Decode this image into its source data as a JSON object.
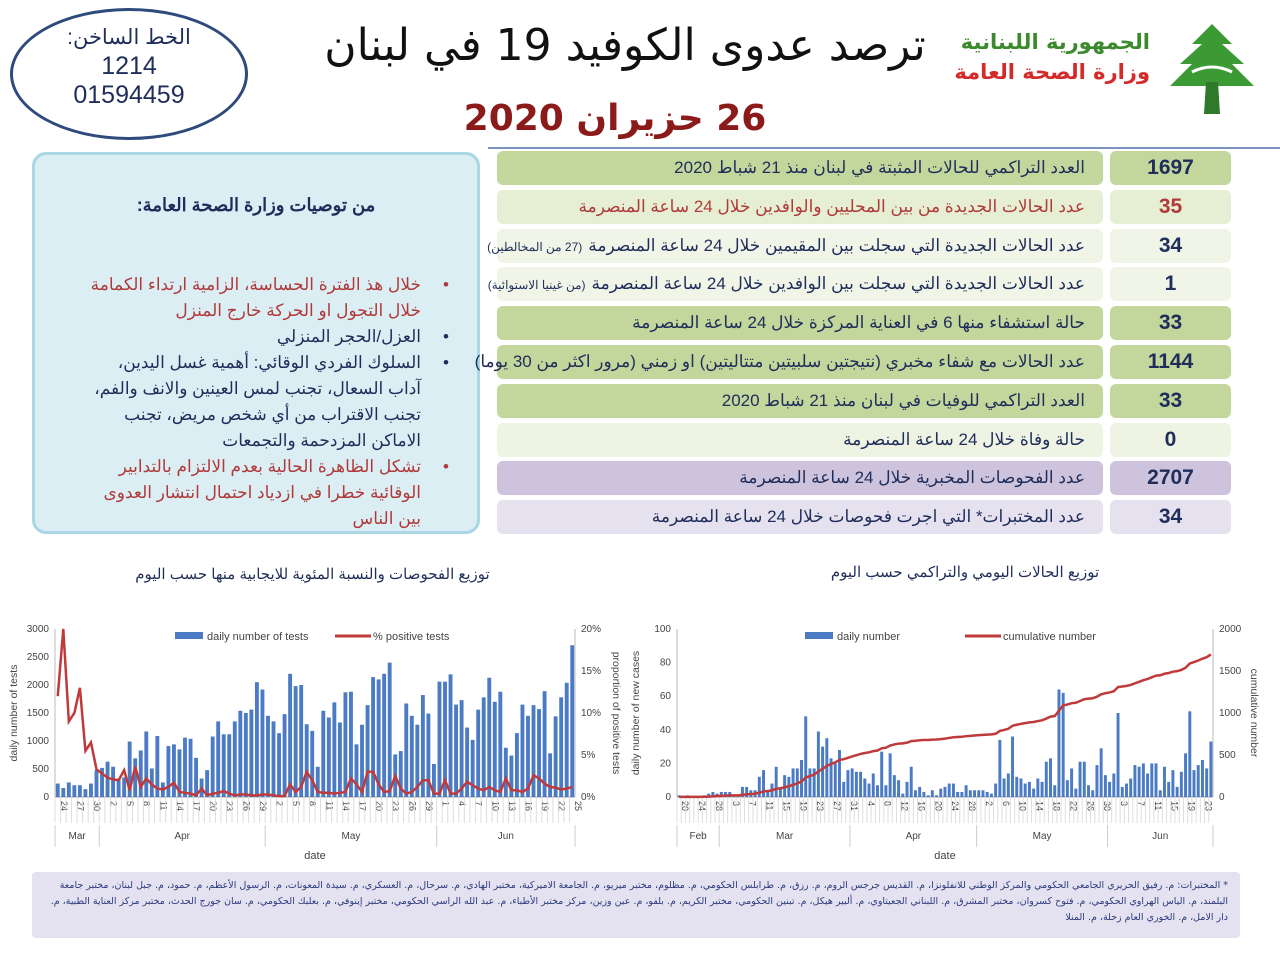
{
  "header": {
    "hotline_label": "الخط الساخن:",
    "hotline_1": "1214",
    "hotline_2": "01594459",
    "title": "ترصد عدوى الكوفيد 19 في لبنان",
    "date": "26 حزيران 2020",
    "ministry_line1": "الجمهورية اللبنانية",
    "ministry_line2": "وزارة الصحة العامة",
    "logo": "cedar-tree-logo"
  },
  "recommendations": {
    "title": "من توصيات وزارة الصحة العامة:",
    "items": [
      {
        "text": "خلال هذ الفترة الحساسة، الزامية ارتداء الكمامة خلال التجول او الحركة خارج المنزل",
        "color": "red"
      },
      {
        "text": "العزل/الحجر المنزلي",
        "color": "blue"
      },
      {
        "text": "السلوك الفردي الوقائي: أهمية غسل اليدين، آداب السعال، تجنب لمس العينين والانف والفم، تجنب الاقتراب من أي شخص مريض، تجنب الاماكن المزدحمة والتجمعات",
        "color": "blue"
      },
      {
        "text": "تشكل الظاهرة الحالية بعدم الالتزام بالتدابير الوقائية خطرا في ازدياد احتمال انتشار العدوى بين الناس",
        "color": "red"
      }
    ]
  },
  "stats": [
    {
      "label": "العدد التراكمي للحالات المثبتة في لبنان منذ 21 شباط 2020",
      "note": "",
      "value": "1697",
      "bg": "#c3d69b",
      "vbg": "#c3d69b",
      "color": "#1f2d5a"
    },
    {
      "label": "عدد الحالات الجديدة من بين المحليين والوافدين خلال 24 ساعة المنصرمة",
      "note": "",
      "value": "35",
      "bg": "#e6efd3",
      "vbg": "#e6efd3",
      "color": "#b03a3a"
    },
    {
      "label": "عدد الحالات الجديدة التي سجلت بين المقيمين خلال 24 ساعة المنصرمة",
      "note": "(27 من المخالطين)",
      "value": "34",
      "bg": "#f1f5e8",
      "vbg": "#f1f5e8",
      "color": "#1f2d5a"
    },
    {
      "label": "عدد الحالات الجديدة التي سجلت بين الوافدين خلال 24 ساعة المنصرمة",
      "note": "(من غينيا الاستوائية)",
      "value": "1",
      "bg": "#f1f5e8",
      "vbg": "#f1f5e8",
      "color": "#1f2d5a"
    },
    {
      "label": "حالة استشفاء منها 6 في العناية المركزة خلال 24 ساعة المنصرمة",
      "note": "",
      "value": "33",
      "bg": "#c3d69b",
      "vbg": "#c3d69b",
      "color": "#1f2d5a"
    },
    {
      "label": "عدد الحالات مع شفاء مخبري (نتيجتين سلبيتين متتاليتين) او زمني (مرور اكثر من 30 يوما)",
      "note": "",
      "value": "1144",
      "bg": "#c3d69b",
      "vbg": "#c3d69b",
      "color": "#1f2d5a"
    },
    {
      "label": "العدد التراكمي للوفيات في لبنان منذ 21 شباط 2020",
      "note": "",
      "value": "33",
      "bg": "#c3d69b",
      "vbg": "#c3d69b",
      "color": "#1f2d5a"
    },
    {
      "label": "حالة وفاة خلال 24 ساعة المنصرمة",
      "note": "",
      "value": "0",
      "bg": "#eef3e3",
      "vbg": "#eef3e3",
      "color": "#1f2d5a"
    },
    {
      "label": "عدد الفحوصات المخبرية خلال 24 ساعة المنصرمة",
      "note": "",
      "value": "2707",
      "bg": "#cdc3dc",
      "vbg": "#cdc3dc",
      "color": "#1f2d5a"
    },
    {
      "label": "عدد المختبرات* التي اجرت فحوصات خلال 24 ساعة المنصرمة",
      "note": "",
      "value": "34",
      "bg": "#e6e1ee",
      "vbg": "#e6e1ee",
      "color": "#1f2d5a"
    }
  ],
  "footer": "* المختبرات: م. رفيق الحريري الجامعي الحكومي والمركز الوطني للانفلونزا، م. القديس جرجس الروم، م. رزق، م. طرابلس الحكومي، م. مظلوم، مختبر ميريو، م. الجامعة الاميركية، مختبر الهادي، م. سرحال، م. العسكري، م. سيدة المعونات، م. الرسول الأعظم، م. حمود، م. جبل لبنان، مختبر جامعة البلمند، م. الياس الهراوي الحكومي، م. فتوح كسروان، مختبر المشرق، م. اللبناني الجعيتاوي، م. ألبير هيكل، م. تبنين الحكومي، مختبر الكريم، م. بلفو، م. عين وزين، مركز مختبر الأطباء، م. عبد الله الراسي الحكومي، مختبر إينوفي، م. بعلبك الحكومي، م. سان جورج الحدث، مختبر مركز العناية الطبية، م. دار الامل، م. الخوري العام زحلة، م. المنلا",
  "chart_data": [
    {
      "type": "bar",
      "title": "توزيع الفحوصات والنسبة المئوية للايجابية منها حسب اليوم",
      "xlabel": "date",
      "ylabel": "daily number of tests",
      "y2label": "proportion of positive tests",
      "ylim": [
        0,
        3000
      ],
      "y2lim": [
        0,
        20
      ],
      "yticks": [
        "0",
        "500",
        "1000",
        "1500",
        "2000",
        "2500",
        "3000"
      ],
      "y2ticks": [
        "0%",
        "5%",
        "10%",
        "15%",
        "20%"
      ],
      "legend_position": "top",
      "tick_every": 3,
      "series": [
        {
          "name": "daily number of tests",
          "type": "bar",
          "color": "#4a7bc4"
        },
        {
          "name": "% positive tests",
          "type": "line",
          "color": "#c0393b"
        }
      ],
      "months": [
        {
          "name": "Mar",
          "first_day": 24,
          "tests": [
            240,
            160,
            260,
            210,
            210,
            140,
            240,
            480
          ],
          "pct_positive": [
            12,
            20,
            9,
            10,
            13,
            5.5,
            6.5,
            3.3
          ]
        },
        {
          "name": "Apr",
          "first_day": 1,
          "tests": [
            520,
            630,
            540,
            330,
            350,
            990,
            690,
            830,
            1170,
            510,
            1090,
            260,
            910,
            940,
            850,
            1060,
            1040,
            700,
            330,
            480,
            1080,
            1350,
            1120,
            1120,
            1350,
            1540,
            1500,
            1560,
            2050,
            1920
          ],
          "pct_positive": [
            2.8,
            2.3,
            2.1,
            2,
            3.2,
            0.8,
            3.6,
            1.2,
            2.2,
            1.5,
            1,
            0.9,
            1.2,
            1.7,
            0.6,
            0.5,
            0.4,
            0.2,
            1,
            0.2,
            0.4,
            0.5,
            0.7,
            0.4,
            0.2,
            0.3,
            0.3,
            0.2,
            0.2,
            0.3
          ]
        },
        {
          "name": "May",
          "first_day": 1,
          "tests": [
            1450,
            1350,
            1140,
            1480,
            2200,
            1980,
            2000,
            1300,
            1180,
            540,
            1540,
            1420,
            1690,
            1330,
            1870,
            1880,
            940,
            1290,
            1640,
            2140,
            2100,
            2200,
            2400,
            760,
            820,
            1670,
            1450,
            1290,
            1820,
            1490,
            590
          ],
          "pct_positive": [
            0.3,
            0.2,
            0.1,
            0.1,
            1.5,
            0.6,
            1.2,
            3,
            2,
            0.6,
            0.5,
            0.5,
            0.4,
            0.5,
            0.6,
            2.2,
            1.5,
            0.6,
            3,
            3,
            1.5,
            0.6,
            0.7,
            2.5,
            1,
            0.4,
            0.6,
            1.2,
            2,
            2,
            0.4
          ]
        },
        {
          "name": "Jun",
          "first_day": 1,
          "tests": [
            2060,
            2060,
            2190,
            1650,
            1730,
            1240,
            1020,
            1560,
            1780,
            2130,
            1700,
            1880,
            880,
            740,
            1140,
            1650,
            1450,
            1640,
            1570,
            1890,
            780,
            1440,
            1780,
            2040,
            2710
          ],
          "pct_positive": [
            0.4,
            2,
            0.4,
            0.4,
            1,
            1.8,
            1.4,
            1,
            0.8,
            1.2,
            0.8,
            0.6,
            2.2,
            0.8,
            0.8,
            0.6,
            1,
            2.6,
            2.2,
            1.6,
            1.2,
            1.1,
            0.9,
            1,
            1.2
          ]
        }
      ]
    },
    {
      "type": "bar",
      "title": "توزيع الحالات اليومي والتراكمي حسب اليوم",
      "xlabel": "date",
      "ylabel": "daily number of new cases",
      "y2label": "cumulative number",
      "ylim": [
        0,
        100
      ],
      "y2lim": [
        0,
        2000
      ],
      "yticks": [
        "0",
        "20",
        "40",
        "60",
        "80",
        "100"
      ],
      "y2ticks": [
        "0",
        "500",
        "1000",
        "1500",
        "2000"
      ],
      "legend_position": "top",
      "tick_every": 4,
      "series": [
        {
          "name": "daily number",
          "type": "bar",
          "color": "#4a7bc4"
        },
        {
          "name": "cumulative number",
          "type": "line",
          "color": "#c0393b"
        }
      ],
      "months": [
        {
          "name": "Feb",
          "first_day": 20,
          "daily": [
            1,
            0,
            1,
            0,
            0,
            0,
            1,
            2,
            3,
            2
          ]
        },
        {
          "name": "Mar",
          "first_day": 1,
          "daily": [
            3,
            3,
            3,
            0,
            0,
            6,
            6,
            4,
            4,
            12,
            16,
            4,
            8,
            18,
            6,
            13,
            12,
            17,
            17,
            22,
            48,
            17,
            17,
            39,
            30,
            35,
            23,
            20,
            28,
            9,
            16
          ]
        },
        {
          "name": "Apr",
          "first_day": 1,
          "daily": [
            17,
            15,
            15,
            11,
            8,
            14,
            7,
            27,
            7,
            26,
            13,
            10,
            2,
            9,
            18,
            4,
            6,
            3,
            1,
            4,
            1,
            5,
            6,
            8,
            8,
            3,
            3,
            7,
            4,
            4
          ]
        },
        {
          "name": "May",
          "first_day": 1,
          "daily": [
            4,
            4,
            3,
            2,
            8,
            34,
            11,
            14,
            36,
            12,
            11,
            8,
            9,
            5,
            11,
            9,
            21,
            23,
            7,
            64,
            62,
            10,
            17,
            5,
            21,
            21,
            7,
            4,
            19,
            29,
            13
          ]
        },
        {
          "name": "Jun",
          "first_day": 1,
          "daily": [
            9,
            14,
            50,
            6,
            8,
            11,
            19,
            18,
            20,
            14,
            20,
            20,
            4,
            18,
            9,
            16,
            6,
            15,
            26,
            51,
            16,
            19,
            22,
            17,
            33
          ]
        }
      ]
    }
  ]
}
